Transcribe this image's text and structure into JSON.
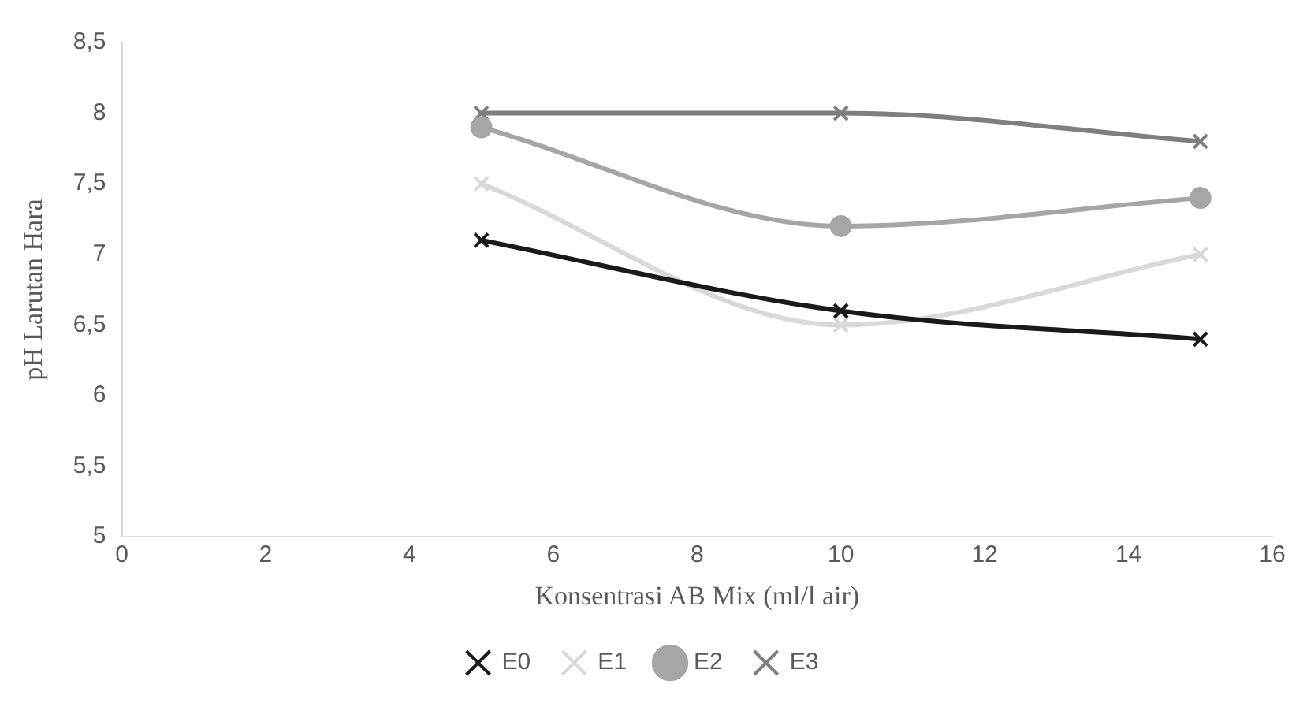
{
  "chart_data": {
    "type": "line",
    "xlabel": "Konsentrasi AB Mix (ml/l air)",
    "ylabel": "pH Larutan Hara",
    "x": [
      5,
      10,
      15
    ],
    "series": [
      {
        "name": "E0",
        "color": "#1a1a1a",
        "values": [
          7.1,
          6.6,
          6.4
        ],
        "marker": "cross"
      },
      {
        "name": "E1",
        "color": "#d9d9d9",
        "values": [
          7.5,
          6.5,
          7.0
        ],
        "marker": "cross"
      },
      {
        "name": "E2",
        "color": "#a6a6a6",
        "values": [
          7.9,
          7.2,
          7.4
        ],
        "marker": "circle"
      },
      {
        "name": "E3",
        "color": "#7f7f7f",
        "values": [
          8.0,
          8.0,
          7.8
        ],
        "marker": "cross"
      }
    ],
    "xlim": [
      0,
      16
    ],
    "xticks": [
      0,
      2,
      4,
      6,
      8,
      10,
      12,
      14,
      16
    ],
    "ylim": [
      5,
      8.5
    ],
    "yticks": [
      5,
      {
        "value": 5.5,
        "label": "5,5"
      },
      6,
      {
        "value": 6.5,
        "label": "6,5"
      },
      7,
      {
        "value": 7.5,
        "label": "7,5"
      },
      8,
      {
        "value": 8.5,
        "label": "8,5"
      }
    ],
    "grid": false,
    "legend": "bottom",
    "line_style": "solid"
  }
}
